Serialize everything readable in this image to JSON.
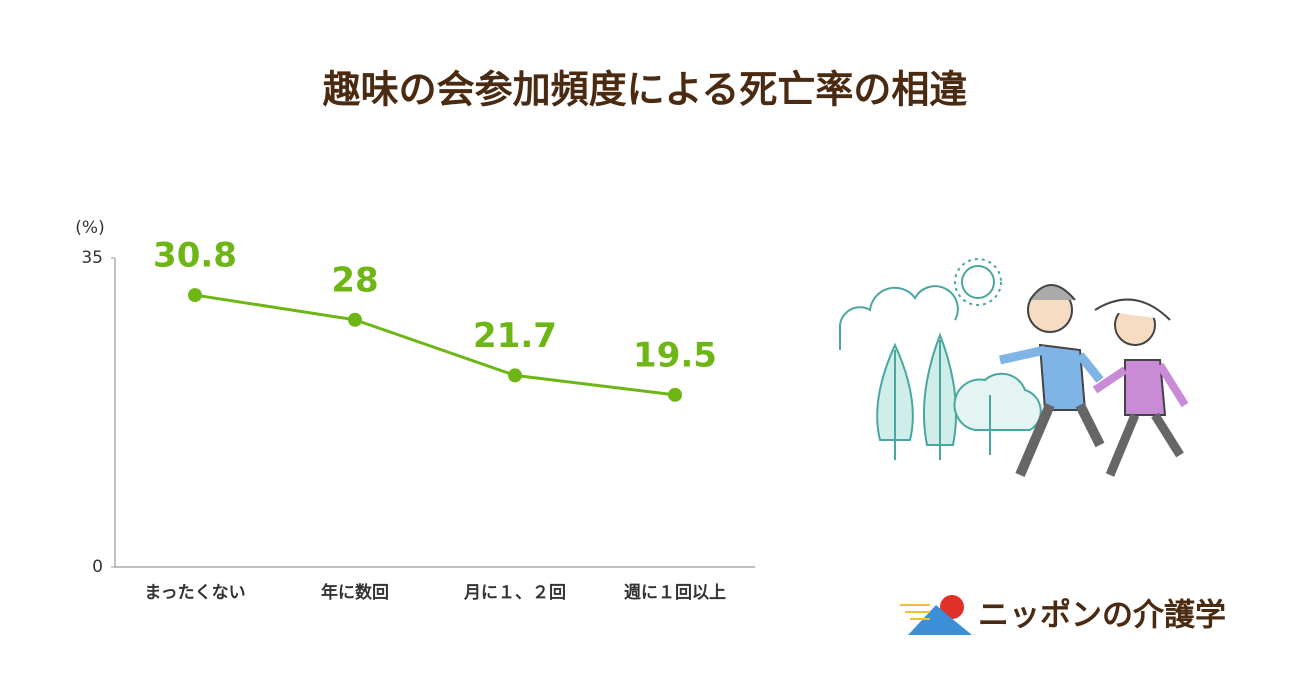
{
  "chart_data": {
    "type": "line",
    "title": "趣味の会参加頻度による死亡率の相違",
    "y_label": "(%)",
    "categories": [
      "まったくない",
      "年に数回",
      "月に１、２回",
      "週に１回以上"
    ],
    "values": [
      30.8,
      28,
      21.7,
      19.5
    ],
    "color": "#6db615",
    "ylim": [
      0,
      35
    ],
    "yticks": [
      0,
      35
    ],
    "grid": false
  },
  "logo": "ニッポンの介護学"
}
